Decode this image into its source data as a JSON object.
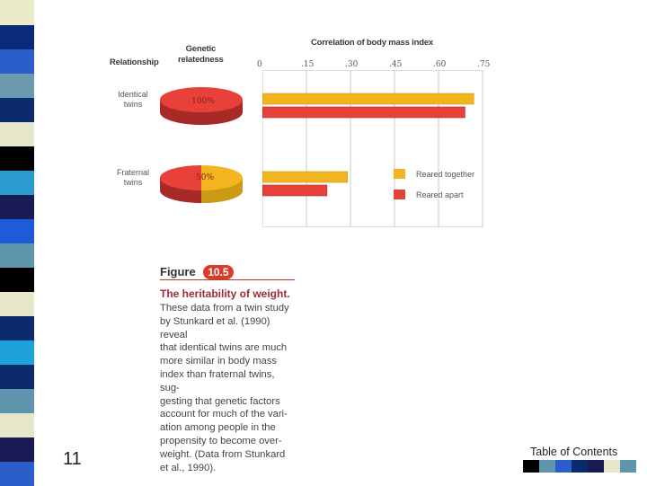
{
  "headers": {
    "relationship": "Relationship",
    "genetic": "Genetic\nrelatedness",
    "correlation": "Correlation of body mass index"
  },
  "rows": [
    {
      "label": "Identical\ntwins",
      "relatedness": "100%"
    },
    {
      "label": "Fraternal\ntwins",
      "relatedness": "50%"
    }
  ],
  "chart_data": {
    "type": "bar",
    "categories": [
      "Identical twins",
      "Fraternal twins"
    ],
    "x_ticks": [
      "0",
      ".15",
      ".30",
      ".45",
      ".60",
      ".75"
    ],
    "xlim": [
      0,
      0.75
    ],
    "series": [
      {
        "name": "Reared together",
        "color": "#f2b51f",
        "values": [
          0.72,
          0.29
        ]
      },
      {
        "name": "Reared apart",
        "color": "#e8413a",
        "values": [
          0.69,
          0.22
        ]
      }
    ],
    "xlabel": "Correlation of body mass index",
    "grid": true,
    "legend": "right"
  },
  "figure": {
    "word": "Figure",
    "number": "10.5",
    "title": "The heritability of weight.",
    "body": "These data from a twin study\nby Stunkard et al. (1990) reveal\nthat identical twins are much\nmore similar in body mass\nindex than fraternal twins, sug-\ngesting that genetic factors\naccount for much of the vari-\nation among people in the\npropensity to become over-\nweight. (Data from Stunkard\net al., 1990)."
  },
  "page_number": "11",
  "toc_link": "Table of Contents",
  "colors": {
    "stripe": [
      "#ebebc9",
      "#0b2a78",
      "#2b5ec9",
      "#6b9aaf",
      "#0a2a6b",
      "#e6e6c8",
      "#000000",
      "#2a9bd0",
      "#1a1a55",
      "#1e5bd6",
      "#5e95ad",
      "#000000",
      "#e6e6c8",
      "#0a2a6b",
      "#1ea2d8",
      "#0a2a6b",
      "#5e95ad",
      "#e6e6c8",
      "#1a1a55",
      "#2b5ec9"
    ],
    "footer_swatches": [
      "#000000",
      "#5e95ad",
      "#2b5ec9",
      "#0a2a6b",
      "#1a1a55",
      "#e6e6c8",
      "#5e95ad"
    ]
  }
}
